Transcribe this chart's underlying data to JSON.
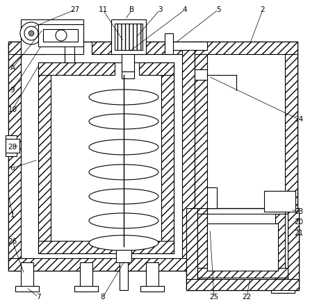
{
  "background": "#ffffff",
  "line_color": "#000000",
  "label_color": "#000000",
  "figsize": [
    4.46,
    4.38
  ],
  "dpi": 100
}
